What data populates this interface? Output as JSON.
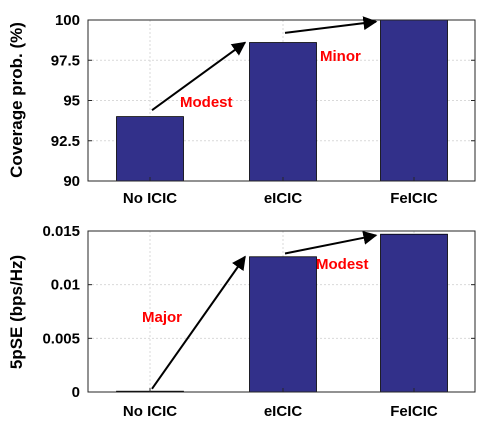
{
  "chart_data": [
    {
      "type": "bar",
      "categories": [
        "No ICIC",
        "eICIC",
        "FeICIC"
      ],
      "values": [
        94.0,
        98.6,
        100.0
      ],
      "ylabel": "Coverage prob. (%)",
      "ylim": [
        90,
        100
      ],
      "yticks": [
        90,
        92.5,
        95,
        97.5,
        100
      ],
      "yticklabels": [
        "90",
        "92.5",
        "95",
        "97.5",
        "100"
      ],
      "grid": true,
      "bar_color": "#32308a",
      "annotation_color": "#ff0000",
      "annotations": [
        {
          "text": "Modest",
          "arrow_from": {
            "x": "No ICIC",
            "y": 94.4
          },
          "arrow_to": {
            "x": "eICIC",
            "y": 98.6
          },
          "label_at": {
            "x": "No ICIC",
            "y": 95.7
          }
        },
        {
          "text": "Minor",
          "arrow_from": {
            "x": "eICIC",
            "y": 99.2
          },
          "arrow_to": {
            "x": "FeICIC",
            "y": 99.9
          },
          "label_at": {
            "x": "eICIC",
            "y": 98.2
          }
        }
      ]
    },
    {
      "type": "bar",
      "categories": [
        "No ICIC",
        "eICIC",
        "FeICIC"
      ],
      "values": [
        0.0,
        0.0126,
        0.0147
      ],
      "ylabel": "5pSE (bps/Hz)",
      "ylim": [
        0,
        0.015
      ],
      "yticks": [
        0,
        0.005,
        0.01,
        0.015
      ],
      "yticklabels": [
        "0",
        "0.005",
        "0.01",
        "0.015"
      ],
      "grid": true,
      "bar_color": "#32308a",
      "annotation_color": "#ff0000",
      "annotations": [
        {
          "text": "Major",
          "arrow_from": {
            "x": "No ICIC",
            "y": 0.0003
          },
          "arrow_to": {
            "x": "eICIC",
            "y": 0.0126
          },
          "label_at": {
            "x": "No ICIC",
            "y": 0.0068
          }
        },
        {
          "text": "Modest",
          "arrow_from": {
            "x": "eICIC",
            "y": 0.0129
          },
          "arrow_to": {
            "x": "FeICIC",
            "y": 0.0146
          },
          "label_at": {
            "x": "eICIC",
            "y": 0.0119
          }
        }
      ]
    }
  ]
}
